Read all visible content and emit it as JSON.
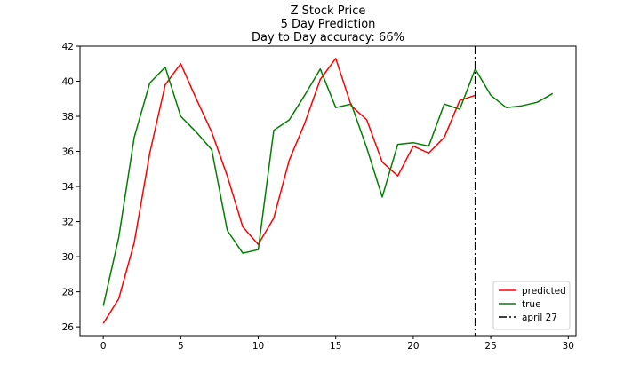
{
  "chart_data": {
    "type": "line",
    "title_lines": [
      "Z Stock Price",
      "5 Day Prediction",
      "Day to Day accuracy: 66%"
    ],
    "xlim": [
      -1.5,
      30.5
    ],
    "ylim": [
      25.5,
      42
    ],
    "xticks": [
      0,
      5,
      10,
      15,
      20,
      25,
      30
    ],
    "yticks": [
      26,
      28,
      30,
      32,
      34,
      36,
      38,
      40,
      42
    ],
    "grid": false,
    "legend_position": "lower-right",
    "series": [
      {
        "name": "predicted",
        "color": "#ff0000",
        "x": [
          0,
          1,
          2,
          3,
          4,
          5,
          6,
          7,
          8,
          9,
          10,
          11,
          12,
          13,
          14,
          15,
          16,
          17,
          18,
          19,
          20,
          21,
          22,
          23,
          24
        ],
        "values": [
          26.2,
          27.6,
          30.8,
          35.9,
          39.8,
          41.0,
          39.0,
          37.1,
          34.6,
          31.7,
          30.7,
          32.2,
          35.5,
          37.6,
          40.1,
          41.3,
          38.6,
          37.8,
          35.4,
          34.6,
          36.3,
          35.9,
          36.8,
          38.9,
          39.2
        ]
      },
      {
        "name": "true",
        "color": "#008000",
        "x": [
          0,
          1,
          2,
          3,
          4,
          5,
          6,
          7,
          8,
          9,
          10,
          11,
          12,
          13,
          14,
          15,
          16,
          17,
          18,
          19,
          20,
          21,
          22,
          23,
          24,
          25,
          26,
          27,
          28,
          29
        ],
        "values": [
          27.2,
          31.1,
          36.8,
          39.9,
          40.8,
          38.0,
          37.1,
          36.1,
          31.5,
          30.2,
          30.4,
          37.2,
          37.8,
          39.2,
          40.7,
          38.5,
          38.7,
          36.2,
          33.4,
          36.4,
          36.5,
          36.3,
          38.7,
          38.4,
          40.7,
          39.2,
          38.5,
          38.6,
          38.8,
          39.3
        ]
      }
    ],
    "vline": {
      "name": "april 27",
      "x": 24,
      "color": "#000000",
      "style": "dashdot"
    }
  }
}
